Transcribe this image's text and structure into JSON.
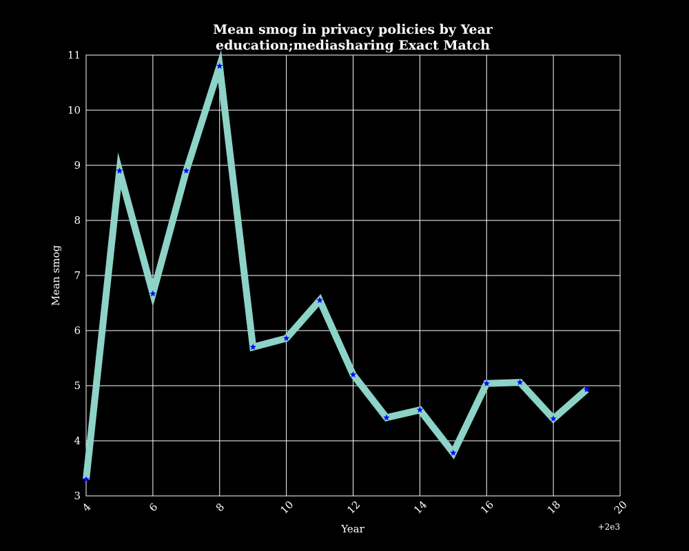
{
  "chart_data": {
    "type": "line",
    "title": "Mean smog in privacy policies by Year",
    "subtitle": "education;mediasharing Exact Match",
    "xlabel": "Year",
    "ylabel": "Mean smog",
    "x_offset_label": "+2e3",
    "xlim": [
      4,
      20
    ],
    "ylim": [
      3,
      11
    ],
    "grid": true,
    "x_ticks": [
      4,
      6,
      8,
      10,
      12,
      14,
      16,
      18,
      20
    ],
    "y_ticks": [
      3,
      4,
      5,
      6,
      7,
      8,
      9,
      10,
      11
    ],
    "series": [
      {
        "x": [
          4,
          5,
          6,
          7,
          8,
          9,
          10,
          11,
          12,
          13,
          14,
          15,
          16,
          17,
          18,
          19
        ],
        "values": [
          3.3,
          8.9,
          6.67,
          8.9,
          10.8,
          5.7,
          5.86,
          6.55,
          5.2,
          4.42,
          4.56,
          3.78,
          5.04,
          5.06,
          4.4,
          4.93
        ],
        "line_color": "#8dd3c7",
        "marker_color": "#0000ff",
        "marker": "star"
      }
    ]
  },
  "colors": {
    "background": "#000000",
    "axes": "#ffffff",
    "grid": "#ffffff"
  }
}
